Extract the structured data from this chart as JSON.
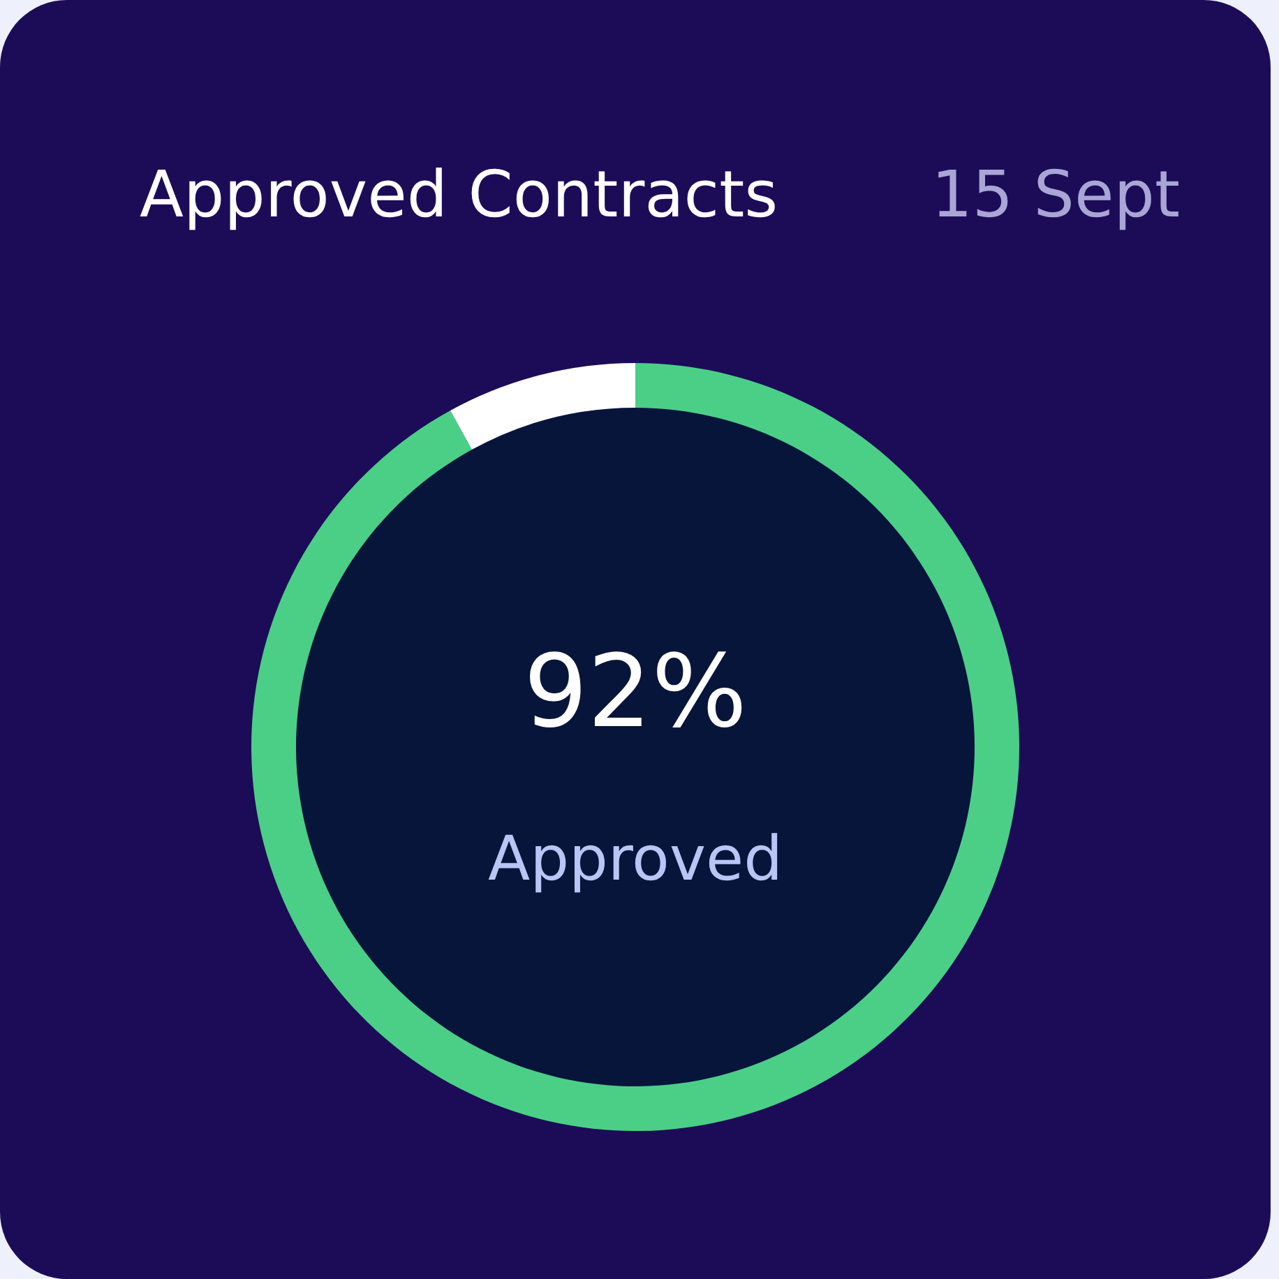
{
  "chart_data": {
    "type": "donut",
    "title": "Approved Contracts",
    "subtitle": "15 Sept",
    "categories": [
      "Approved",
      null
    ],
    "values": [
      92,
      8
    ],
    "colors": [
      "#4bcf87",
      "#ffffff"
    ],
    "value_labels": [
      "92%",
      null
    ]
  }
}
